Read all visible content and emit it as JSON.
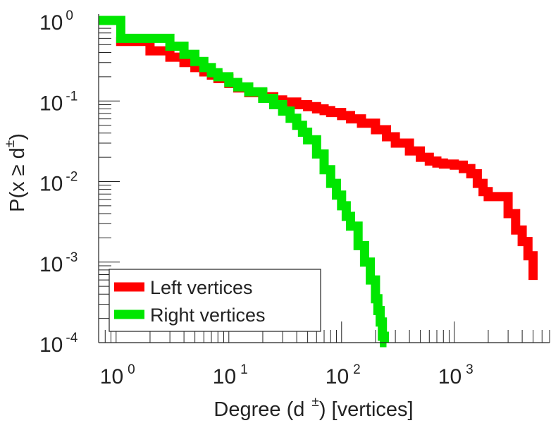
{
  "chart_data": {
    "type": "line",
    "subtype": "step",
    "scale": {
      "x": "log",
      "y": "log"
    },
    "xlabel": "Degree (d ±) [vertices]",
    "xlabel_parts": {
      "prefix": "Degree (d",
      "sup": "±",
      "suffix": ") [vertices]"
    },
    "ylabel": "P(x ≥ d±)",
    "ylabel_parts": {
      "prefix": "P(x ≥ d",
      "sup": "±",
      "suffix": ")"
    },
    "xlim": [
      0.7,
      7000
    ],
    "ylim": [
      0.0001,
      1.2
    ],
    "xticks": [
      {
        "value": 1,
        "base": "10",
        "exp": "0"
      },
      {
        "value": 10,
        "base": "10",
        "exp": "1"
      },
      {
        "value": 100,
        "base": "10",
        "exp": "2"
      },
      {
        "value": 1000,
        "base": "10",
        "exp": "3"
      }
    ],
    "yticks": [
      {
        "value": 1,
        "base": "10",
        "exp": "0"
      },
      {
        "value": 0.1,
        "base": "10",
        "exp": "-1"
      },
      {
        "value": 0.01,
        "base": "10",
        "exp": "-2"
      },
      {
        "value": 0.001,
        "base": "10",
        "exp": "-3"
      },
      {
        "value": 0.0001,
        "base": "10",
        "exp": "-4"
      }
    ],
    "grid": false,
    "legend_position": "bottom-left",
    "series": [
      {
        "name": "Left vertices",
        "color": "#ff0000",
        "x": [
          1,
          2,
          3,
          4,
          5,
          6,
          7,
          8,
          10,
          12,
          15,
          20,
          25,
          30,
          40,
          50,
          60,
          70,
          80,
          100,
          120,
          150,
          200,
          250,
          300,
          400,
          500,
          600,
          700,
          800,
          1000,
          1200,
          1400,
          1600,
          1800,
          2000,
          2500,
          3000,
          3500,
          4000,
          4500,
          5000
        ],
        "y": [
          0.55,
          0.42,
          0.35,
          0.3,
          0.26,
          0.23,
          0.21,
          0.19,
          0.165,
          0.145,
          0.127,
          0.113,
          0.103,
          0.097,
          0.09,
          0.085,
          0.08,
          0.076,
          0.072,
          0.066,
          0.06,
          0.053,
          0.044,
          0.036,
          0.03,
          0.024,
          0.02,
          0.018,
          0.017,
          0.0165,
          0.016,
          0.0145,
          0.0125,
          0.0095,
          0.0075,
          0.0065,
          0.0065,
          0.004,
          0.0025,
          0.0018,
          0.0012,
          0.0006
        ]
      },
      {
        "name": "Right vertices",
        "color": "#00e600",
        "x": [
          0.7,
          1,
          1.1,
          2,
          3,
          4,
          5,
          6,
          7,
          8,
          10,
          12,
          15,
          20,
          25,
          30,
          35,
          40,
          45,
          50,
          60,
          70,
          80,
          90,
          100,
          110,
          120,
          140,
          160,
          180,
          200,
          210,
          220,
          230,
          240,
          250
        ],
        "y": [
          1,
          1,
          0.6,
          0.6,
          0.48,
          0.38,
          0.31,
          0.26,
          0.225,
          0.2,
          0.17,
          0.15,
          0.13,
          0.108,
          0.09,
          0.075,
          0.061,
          0.05,
          0.041,
          0.033,
          0.022,
          0.014,
          0.0095,
          0.0068,
          0.005,
          0.0037,
          0.0028,
          0.0016,
          0.001,
          0.0006,
          0.00035,
          0.00025,
          0.00018,
          0.00012,
          0.0001,
          0.0001
        ]
      }
    ]
  }
}
